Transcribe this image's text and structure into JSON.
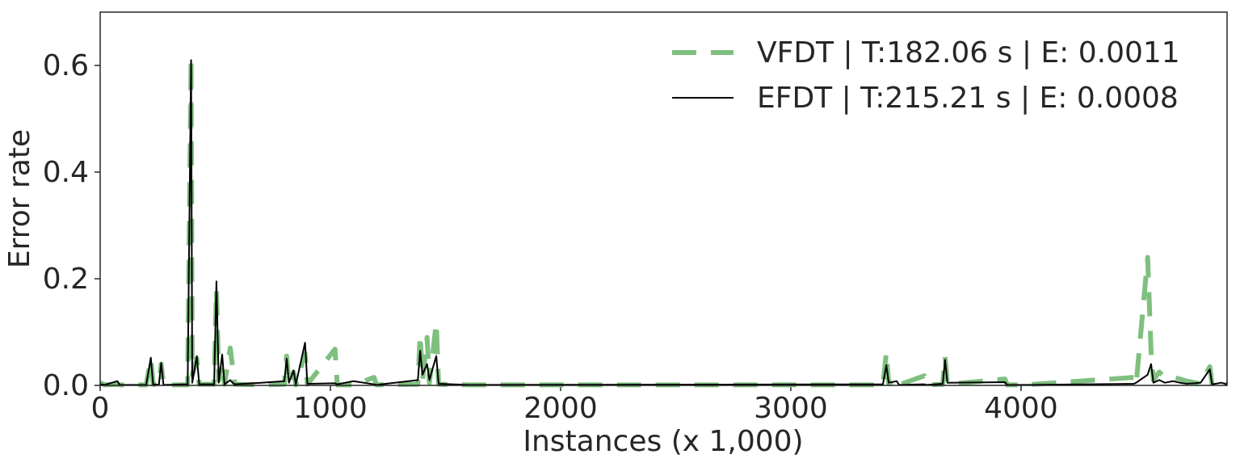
{
  "chart_data": {
    "type": "line",
    "xlabel": "Instances (x 1,000)",
    "ylabel": "Error rate",
    "x": [
      0,
      20,
      75,
      85,
      200,
      220,
      230,
      255,
      265,
      275,
      380,
      395,
      400,
      420,
      430,
      495,
      505,
      515,
      530,
      540,
      565,
      575,
      585,
      700,
      800,
      810,
      820,
      840,
      850,
      890,
      900,
      1020,
      1030,
      1100,
      1190,
      1200,
      1380,
      1390,
      1400,
      1420,
      1430,
      1460,
      1470,
      1600,
      3400,
      3415,
      3425,
      3460,
      3470,
      3580,
      3590,
      3660,
      3670,
      3680,
      3930,
      3940,
      4020,
      4490,
      4500,
      4550,
      4565,
      4575,
      4600,
      4625,
      4660,
      4690,
      4720,
      4780,
      4820,
      4830,
      4870,
      4895
    ],
    "series": [
      {
        "name": "VFDT | T:182.06 s | E: 0.0011",
        "color": "#7fbf7f",
        "dashed": true,
        "values": [
          0.005,
          0.001,
          0.002,
          0.001,
          0.001,
          0.05,
          0.002,
          0.001,
          0.04,
          0.001,
          0.001,
          0.615,
          0.02,
          0.05,
          0.002,
          0.002,
          0.18,
          0.01,
          0.04,
          0.002,
          0.07,
          0.035,
          0.002,
          0.001,
          0.002,
          0.055,
          0.002,
          0.025,
          0.001,
          0.06,
          0.002,
          0.068,
          0.001,
          0.001,
          0.015,
          0.001,
          0.002,
          0.095,
          0.01,
          0.09,
          0.005,
          0.118,
          0.002,
          0.001,
          0.001,
          0.062,
          0.003,
          0.012,
          0.001,
          0.018,
          0.001,
          0.002,
          0.054,
          0.002,
          0.012,
          0.001,
          0.001,
          0.015,
          0.002,
          0.24,
          0.062,
          0.01,
          0.025,
          0.016,
          0.015,
          0.012,
          0.008,
          0.003,
          0.035,
          0.001,
          0.008,
          0.002
        ]
      },
      {
        "name": "EFDT | T:215.21 s | E: 0.0008",
        "color": "#000000",
        "dashed": false,
        "values": [
          0.002,
          0.001,
          0.008,
          0.001,
          0.001,
          0.052,
          0.002,
          0.001,
          0.042,
          0.001,
          0.002,
          0.61,
          0.005,
          0.055,
          0.002,
          0.002,
          0.195,
          0.005,
          0.058,
          0.002,
          0.01,
          0.005,
          0.002,
          0.005,
          0.008,
          0.05,
          0.005,
          0.028,
          0.002,
          0.08,
          0.003,
          0.004,
          0.002,
          0.008,
          0.002,
          0.001,
          0.01,
          0.065,
          0.02,
          0.04,
          0.01,
          0.055,
          0.003,
          0.001,
          0.002,
          0.038,
          0.005,
          0.008,
          0.001,
          0.002,
          0.001,
          0.003,
          0.048,
          0.005,
          0.006,
          0.001,
          0.001,
          0.003,
          0.005,
          0.02,
          0.04,
          0.005,
          0.01,
          0.005,
          0.008,
          0.005,
          0.003,
          0.005,
          0.03,
          0.002,
          0.005,
          0.002
        ]
      }
    ],
    "xlim": [
      0,
      4895
    ],
    "xticks": [
      0,
      1000,
      2000,
      3000,
      4000
    ],
    "ylim": [
      0,
      0.7
    ],
    "yticks": [
      {
        "value": 0,
        "label": "0.0"
      },
      0.2,
      0.4,
      0.6
    ],
    "grid": false,
    "legend": "upper right"
  }
}
